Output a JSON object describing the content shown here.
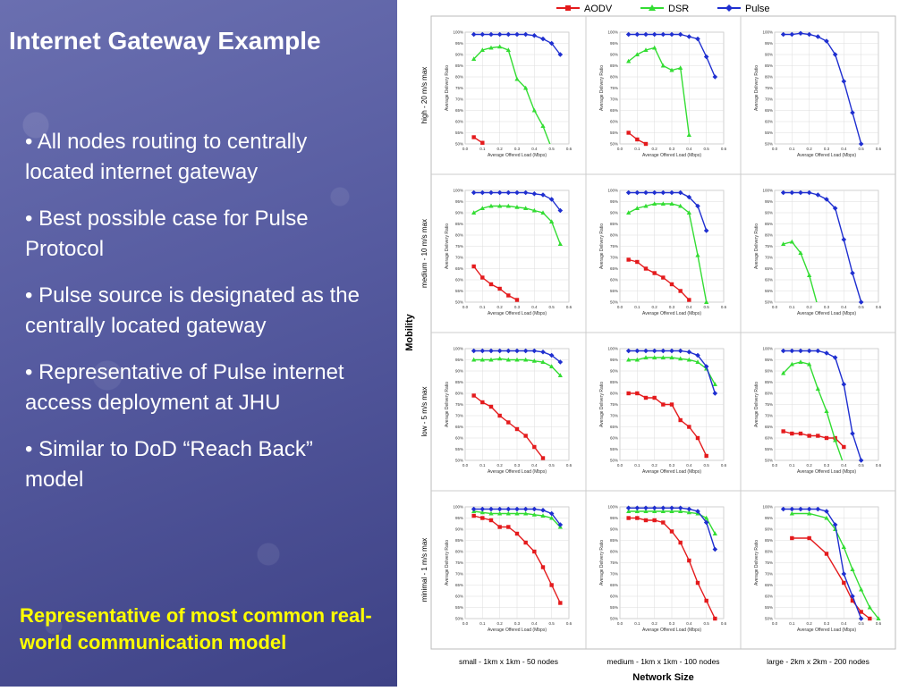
{
  "slide": {
    "title": "Internet Gateway Example",
    "bullets": [
      "• All nodes routing to centrally located internet gateway",
      "• Best possible case for Pulse Protocol",
      "• Pulse source is designated as the centrally located gateway",
      "• Representative of Pulse internet access deployment at JHU",
      "• Similar to DoD “Reach Back” model"
    ],
    "note": "Representative of most common real-world communication model"
  },
  "colors": {
    "AODV": "#e41a1c",
    "DSR": "#33dd33",
    "Pulse": "#1f2fd0"
  },
  "chart_data": {
    "type": "line",
    "legend": [
      "AODV",
      "DSR",
      "Pulse"
    ],
    "legend_placement": "top",
    "outer_xlabel": "Network Size",
    "outer_ylabel": "Mobility",
    "columns": [
      "small - 1km x 1km - 50 nodes",
      "medium - 1km x 1km - 100 nodes",
      "large - 2km x 2km - 200 nodes"
    ],
    "rows": [
      "high - 20 m/s max",
      "medium - 10 m/s max",
      "low - 5 m/s max",
      "minimal - 1 m/s max"
    ],
    "subplot_xlabel": "Average Offered Load (Mbps)",
    "subplot_ylabel": "Average Delivery Ratio",
    "xlim": [
      0,
      0.6
    ],
    "ylim": [
      50,
      100
    ],
    "xticks": [
      "0.0",
      "0.1",
      "0.2",
      "0.3",
      "0.4",
      "0.5",
      "0.6"
    ],
    "yticks": [
      "100%",
      "95%",
      "90%",
      "85%",
      "80%",
      "75%",
      "70%",
      "65%",
      "60%",
      "55%",
      "50%"
    ],
    "grid": true,
    "subplots": [
      {
        "row": 0,
        "col": 0,
        "series": [
          {
            "name": "AODV",
            "x": [
              0.05,
              0.1
            ],
            "y": [
              53,
              50.5
            ]
          },
          {
            "name": "DSR",
            "x": [
              0.05,
              0.1,
              0.15,
              0.2,
              0.25,
              0.3,
              0.35,
              0.4,
              0.45,
              0.5
            ],
            "y": [
              88,
              92,
              93,
              93.5,
              92,
              79,
              75,
              65,
              58,
              48
            ]
          },
          {
            "name": "Pulse",
            "x": [
              0.05,
              0.1,
              0.15,
              0.2,
              0.25,
              0.3,
              0.35,
              0.4,
              0.45,
              0.5,
              0.55
            ],
            "y": [
              99,
              99,
              99,
              99,
              99,
              99,
              99,
              98.5,
              97,
              95,
              90
            ]
          }
        ]
      },
      {
        "row": 0,
        "col": 1,
        "series": [
          {
            "name": "AODV",
            "x": [
              0.05,
              0.1,
              0.15
            ],
            "y": [
              55,
              52,
              50
            ]
          },
          {
            "name": "DSR",
            "x": [
              0.05,
              0.1,
              0.15,
              0.2,
              0.25,
              0.3,
              0.35,
              0.4
            ],
            "y": [
              87,
              90,
              92,
              93,
              85,
              83,
              84,
              54
            ]
          },
          {
            "name": "Pulse",
            "x": [
              0.05,
              0.1,
              0.15,
              0.2,
              0.25,
              0.3,
              0.35,
              0.4,
              0.45,
              0.5,
              0.55
            ],
            "y": [
              99,
              99,
              99,
              99,
              99,
              99,
              99,
              98,
              97,
              89,
              80
            ]
          }
        ]
      },
      {
        "row": 0,
        "col": 2,
        "series": [
          {
            "name": "Pulse",
            "x": [
              0.05,
              0.1,
              0.15,
              0.2,
              0.25,
              0.3,
              0.35,
              0.4,
              0.45,
              0.5
            ],
            "y": [
              99,
              99,
              99.5,
              99,
              98,
              96,
              90,
              78,
              64,
              50
            ]
          }
        ]
      },
      {
        "row": 1,
        "col": 0,
        "series": [
          {
            "name": "AODV",
            "x": [
              0.05,
              0.1,
              0.15,
              0.2,
              0.25,
              0.3
            ],
            "y": [
              66,
              61,
              58,
              56,
              53,
              51
            ]
          },
          {
            "name": "DSR",
            "x": [
              0.05,
              0.1,
              0.15,
              0.2,
              0.25,
              0.3,
              0.35,
              0.4,
              0.45,
              0.5,
              0.55
            ],
            "y": [
              90,
              92,
              93,
              93,
              93,
              92.5,
              92,
              91,
              90,
              86,
              76
            ]
          },
          {
            "name": "Pulse",
            "x": [
              0.05,
              0.1,
              0.15,
              0.2,
              0.25,
              0.3,
              0.35,
              0.4,
              0.45,
              0.5,
              0.55
            ],
            "y": [
              99,
              99,
              99,
              99,
              99,
              99,
              99,
              98.5,
              98,
              96,
              91
            ]
          }
        ]
      },
      {
        "row": 1,
        "col": 1,
        "series": [
          {
            "name": "AODV",
            "x": [
              0.05,
              0.1,
              0.15,
              0.2,
              0.25,
              0.3,
              0.35,
              0.4
            ],
            "y": [
              69,
              68,
              65,
              63,
              61,
              58,
              55,
              51
            ]
          },
          {
            "name": "DSR",
            "x": [
              0.05,
              0.1,
              0.15,
              0.2,
              0.25,
              0.3,
              0.35,
              0.4,
              0.45,
              0.5
            ],
            "y": [
              90,
              92,
              93,
              94,
              94,
              94,
              93,
              90,
              71,
              50
            ]
          },
          {
            "name": "Pulse",
            "x": [
              0.05,
              0.1,
              0.15,
              0.2,
              0.25,
              0.3,
              0.35,
              0.4,
              0.45,
              0.5
            ],
            "y": [
              99,
              99,
              99,
              99,
              99,
              99,
              99,
              97,
              93,
              82
            ]
          }
        ]
      },
      {
        "row": 1,
        "col": 2,
        "series": [
          {
            "name": "DSR",
            "x": [
              0.05,
              0.1,
              0.15,
              0.2,
              0.25
            ],
            "y": [
              76,
              77,
              72,
              62,
              48
            ]
          },
          {
            "name": "Pulse",
            "x": [
              0.05,
              0.1,
              0.15,
              0.2,
              0.25,
              0.3,
              0.35,
              0.4,
              0.45,
              0.5
            ],
            "y": [
              99,
              99,
              99,
              99,
              98,
              96,
              92,
              78,
              63,
              50
            ]
          }
        ]
      },
      {
        "row": 2,
        "col": 0,
        "series": [
          {
            "name": "AODV",
            "x": [
              0.05,
              0.1,
              0.15,
              0.2,
              0.25,
              0.3,
              0.35,
              0.4,
              0.45
            ],
            "y": [
              79,
              76,
              74,
              70,
              67,
              64,
              61,
              56,
              51
            ]
          },
          {
            "name": "DSR",
            "x": [
              0.05,
              0.1,
              0.15,
              0.2,
              0.25,
              0.3,
              0.35,
              0.4,
              0.45,
              0.5,
              0.55
            ],
            "y": [
              95,
              95,
              95,
              95.5,
              95,
              95,
              95,
              94.5,
              94,
              92,
              88
            ]
          },
          {
            "name": "Pulse",
            "x": [
              0.05,
              0.1,
              0.15,
              0.2,
              0.25,
              0.3,
              0.35,
              0.4,
              0.45,
              0.5,
              0.55
            ],
            "y": [
              99,
              99,
              99,
              99,
              99,
              99,
              99,
              99,
              98.5,
              97,
              94
            ]
          }
        ]
      },
      {
        "row": 2,
        "col": 1,
        "series": [
          {
            "name": "AODV",
            "x": [
              0.05,
              0.1,
              0.15,
              0.2,
              0.25,
              0.3,
              0.35,
              0.4,
              0.45,
              0.5
            ],
            "y": [
              80,
              80,
              78,
              78,
              75,
              75,
              68,
              65,
              60,
              52
            ]
          },
          {
            "name": "DSR",
            "x": [
              0.05,
              0.1,
              0.15,
              0.2,
              0.25,
              0.3,
              0.35,
              0.4,
              0.45,
              0.5,
              0.55
            ],
            "y": [
              95,
              95,
              96,
              96,
              96,
              96,
              95.5,
              95,
              94,
              91,
              84
            ]
          },
          {
            "name": "Pulse",
            "x": [
              0.05,
              0.1,
              0.15,
              0.2,
              0.25,
              0.3,
              0.35,
              0.4,
              0.45,
              0.5,
              0.55
            ],
            "y": [
              99,
              99,
              99,
              99,
              99,
              99,
              99,
              98.5,
              97,
              92,
              80
            ]
          }
        ]
      },
      {
        "row": 2,
        "col": 2,
        "series": [
          {
            "name": "AODV",
            "x": [
              0.05,
              0.1,
              0.15,
              0.2,
              0.25,
              0.3,
              0.35,
              0.4
            ],
            "y": [
              63,
              62,
              62,
              61,
              61,
              60,
              60,
              56
            ]
          },
          {
            "name": "DSR",
            "x": [
              0.05,
              0.1,
              0.15,
              0.2,
              0.25,
              0.3,
              0.35,
              0.4
            ],
            "y": [
              89,
              93,
              94,
              93,
              82,
              72,
              59,
              48
            ]
          },
          {
            "name": "Pulse",
            "x": [
              0.05,
              0.1,
              0.15,
              0.2,
              0.25,
              0.3,
              0.35,
              0.4,
              0.45,
              0.5
            ],
            "y": [
              99,
              99,
              99,
              99,
              99,
              98,
              96,
              84,
              62,
              50
            ]
          }
        ]
      },
      {
        "row": 3,
        "col": 0,
        "series": [
          {
            "name": "AODV",
            "x": [
              0.05,
              0.1,
              0.15,
              0.2,
              0.25,
              0.3,
              0.35,
              0.4,
              0.45,
              0.5,
              0.55
            ],
            "y": [
              96,
              95,
              94,
              91,
              91,
              88,
              84,
              80,
              73,
              65,
              57
            ]
          },
          {
            "name": "DSR",
            "x": [
              0.05,
              0.1,
              0.15,
              0.2,
              0.25,
              0.3,
              0.35,
              0.4,
              0.45,
              0.5,
              0.55
            ],
            "y": [
              98,
              97.5,
              97,
              97,
              97,
              97,
              97,
              96.5,
              96,
              95,
              91
            ]
          },
          {
            "name": "Pulse",
            "x": [
              0.05,
              0.1,
              0.15,
              0.2,
              0.25,
              0.3,
              0.35,
              0.4,
              0.45,
              0.5,
              0.55
            ],
            "y": [
              99,
              99,
              99,
              99,
              99,
              99,
              99,
              99,
              98.5,
              97,
              92
            ]
          }
        ]
      },
      {
        "row": 3,
        "col": 1,
        "series": [
          {
            "name": "AODV",
            "x": [
              0.05,
              0.1,
              0.15,
              0.2,
              0.25,
              0.3,
              0.35,
              0.4,
              0.45,
              0.5,
              0.55
            ],
            "y": [
              95,
              95,
              94,
              94,
              93,
              89,
              84,
              76,
              66,
              58,
              50
            ]
          },
          {
            "name": "DSR",
            "x": [
              0.05,
              0.1,
              0.15,
              0.2,
              0.25,
              0.3,
              0.35,
              0.4,
              0.45,
              0.5,
              0.55
            ],
            "y": [
              98,
              98,
              98,
              98,
              98,
              98,
              98,
              97.5,
              97,
              95,
              88
            ]
          },
          {
            "name": "Pulse",
            "x": [
              0.05,
              0.1,
              0.15,
              0.2,
              0.25,
              0.3,
              0.35,
              0.4,
              0.45,
              0.5,
              0.55
            ],
            "y": [
              99.5,
              99.5,
              99.5,
              99.5,
              99.5,
              99.5,
              99.5,
              99,
              98,
              93,
              81
            ]
          }
        ]
      },
      {
        "row": 3,
        "col": 2,
        "series": [
          {
            "name": "AODV",
            "x": [
              0.1,
              0.2,
              0.3,
              0.4,
              0.45,
              0.5,
              0.55
            ],
            "y": [
              86,
              86,
              79,
              66,
              58,
              53,
              50
            ]
          },
          {
            "name": "DSR",
            "x": [
              0.1,
              0.2,
              0.3,
              0.35,
              0.4,
              0.45,
              0.5,
              0.55,
              0.6
            ],
            "y": [
              97,
              97,
              95,
              90,
              82,
              72,
              63,
              55,
              50
            ]
          },
          {
            "name": "Pulse",
            "x": [
              0.05,
              0.1,
              0.15,
              0.2,
              0.25,
              0.3,
              0.35,
              0.4,
              0.45,
              0.5
            ],
            "y": [
              99,
              99,
              99,
              99,
              99,
              98,
              92,
              70,
              60,
              50
            ]
          }
        ]
      }
    ]
  }
}
